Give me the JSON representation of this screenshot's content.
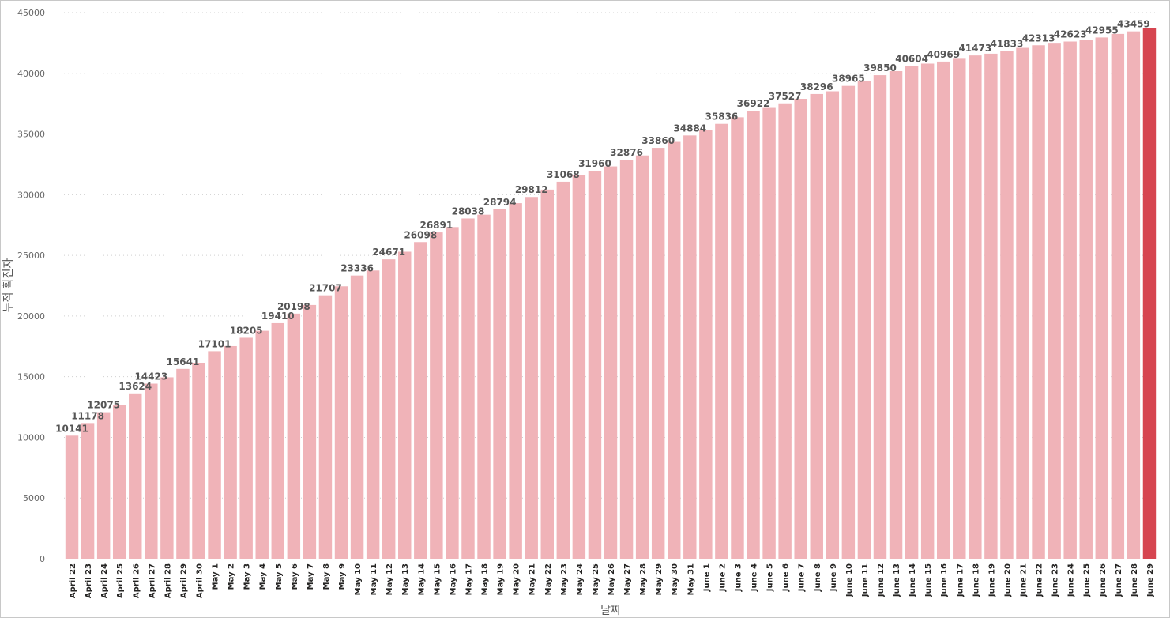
{
  "chart_data": {
    "type": "bar",
    "xlabel": "날짜",
    "ylabel": "누적 확진자",
    "ylim": [
      0,
      45000
    ],
    "yticks": [
      0,
      5000,
      10000,
      15000,
      20000,
      25000,
      30000,
      35000,
      40000,
      45000
    ],
    "grid": true,
    "colors": {
      "bar": "#f0b3b8",
      "highlight": "#d64550"
    },
    "highlight_category": "June 29",
    "categories": [
      "April 22",
      "April 23",
      "April 24",
      "April 25",
      "April 26",
      "April 27",
      "April 28",
      "April 29",
      "April 30",
      "May 1",
      "May 2",
      "May 3",
      "May 4",
      "May 5",
      "May 6",
      "May 7",
      "May 8",
      "May 9",
      "May 10",
      "May 11",
      "May 12",
      "May 13",
      "May 14",
      "May 15",
      "May 16",
      "May 17",
      "May 18",
      "May 19",
      "May 20",
      "May 21",
      "May 22",
      "May 23",
      "May 24",
      "May 25",
      "May 26",
      "May 27",
      "May 28",
      "May 29",
      "May 30",
      "May 31",
      "June 1",
      "June 2",
      "June 3",
      "June 4",
      "June 5",
      "June 6",
      "June 7",
      "June 8",
      "June 9",
      "June 10",
      "June 11",
      "June 12",
      "June 13",
      "June 14",
      "June 15",
      "June 16",
      "June 17",
      "June 18",
      "June 19",
      "June 20",
      "June 21",
      "June 22",
      "June 23",
      "June 24",
      "June 25",
      "June 26",
      "June 27",
      "June 28",
      "June 29"
    ],
    "values": [
      10141,
      11178,
      12075,
      12640,
      13624,
      14423,
      14950,
      15641,
      16150,
      17101,
      17520,
      18205,
      18780,
      19410,
      20198,
      20910,
      21707,
      22450,
      23336,
      23750,
      24671,
      25300,
      26098,
      26891,
      27330,
      28038,
      28350,
      28794,
      29300,
      29812,
      30420,
      31068,
      31600,
      31960,
      32330,
      32876,
      33230,
      33860,
      34350,
      34884,
      35300,
      35836,
      36380,
      36922,
      37150,
      37527,
      37900,
      38296,
      38520,
      38965,
      39380,
      39850,
      40180,
      40604,
      40800,
      40969,
      41200,
      41473,
      41620,
      41833,
      42100,
      42313,
      42450,
      42623,
      42750,
      42955,
      43250,
      43459,
      43700
    ],
    "data_labels": [
      {
        "index": 0,
        "text": "10141"
      },
      {
        "index": 1,
        "text": "11178"
      },
      {
        "index": 2,
        "text": "12075"
      },
      {
        "index": 4,
        "text": "13624"
      },
      {
        "index": 5,
        "text": "14423"
      },
      {
        "index": 7,
        "text": "15641"
      },
      {
        "index": 9,
        "text": "17101"
      },
      {
        "index": 11,
        "text": "18205"
      },
      {
        "index": 13,
        "text": "19410"
      },
      {
        "index": 14,
        "text": "20198"
      },
      {
        "index": 16,
        "text": "21707"
      },
      {
        "index": 18,
        "text": "23336"
      },
      {
        "index": 20,
        "text": "24671"
      },
      {
        "index": 22,
        "text": "26098"
      },
      {
        "index": 23,
        "text": "26891"
      },
      {
        "index": 25,
        "text": "28038"
      },
      {
        "index": 27,
        "text": "28794"
      },
      {
        "index": 29,
        "text": "29812"
      },
      {
        "index": 31,
        "text": "31068"
      },
      {
        "index": 33,
        "text": "31960"
      },
      {
        "index": 35,
        "text": "32876"
      },
      {
        "index": 37,
        "text": "33860"
      },
      {
        "index": 39,
        "text": "34884"
      },
      {
        "index": 41,
        "text": "35836"
      },
      {
        "index": 43,
        "text": "36922"
      },
      {
        "index": 45,
        "text": "37527"
      },
      {
        "index": 47,
        "text": "38296"
      },
      {
        "index": 49,
        "text": "38965"
      },
      {
        "index": 51,
        "text": "39850"
      },
      {
        "index": 53,
        "text": "40604"
      },
      {
        "index": 55,
        "text": "40969"
      },
      {
        "index": 57,
        "text": "41473"
      },
      {
        "index": 59,
        "text": "41833"
      },
      {
        "index": 61,
        "text": "42313"
      },
      {
        "index": 63,
        "text": "42623"
      },
      {
        "index": 65,
        "text": "42955"
      },
      {
        "index": 67,
        "text": "43459"
      }
    ]
  }
}
